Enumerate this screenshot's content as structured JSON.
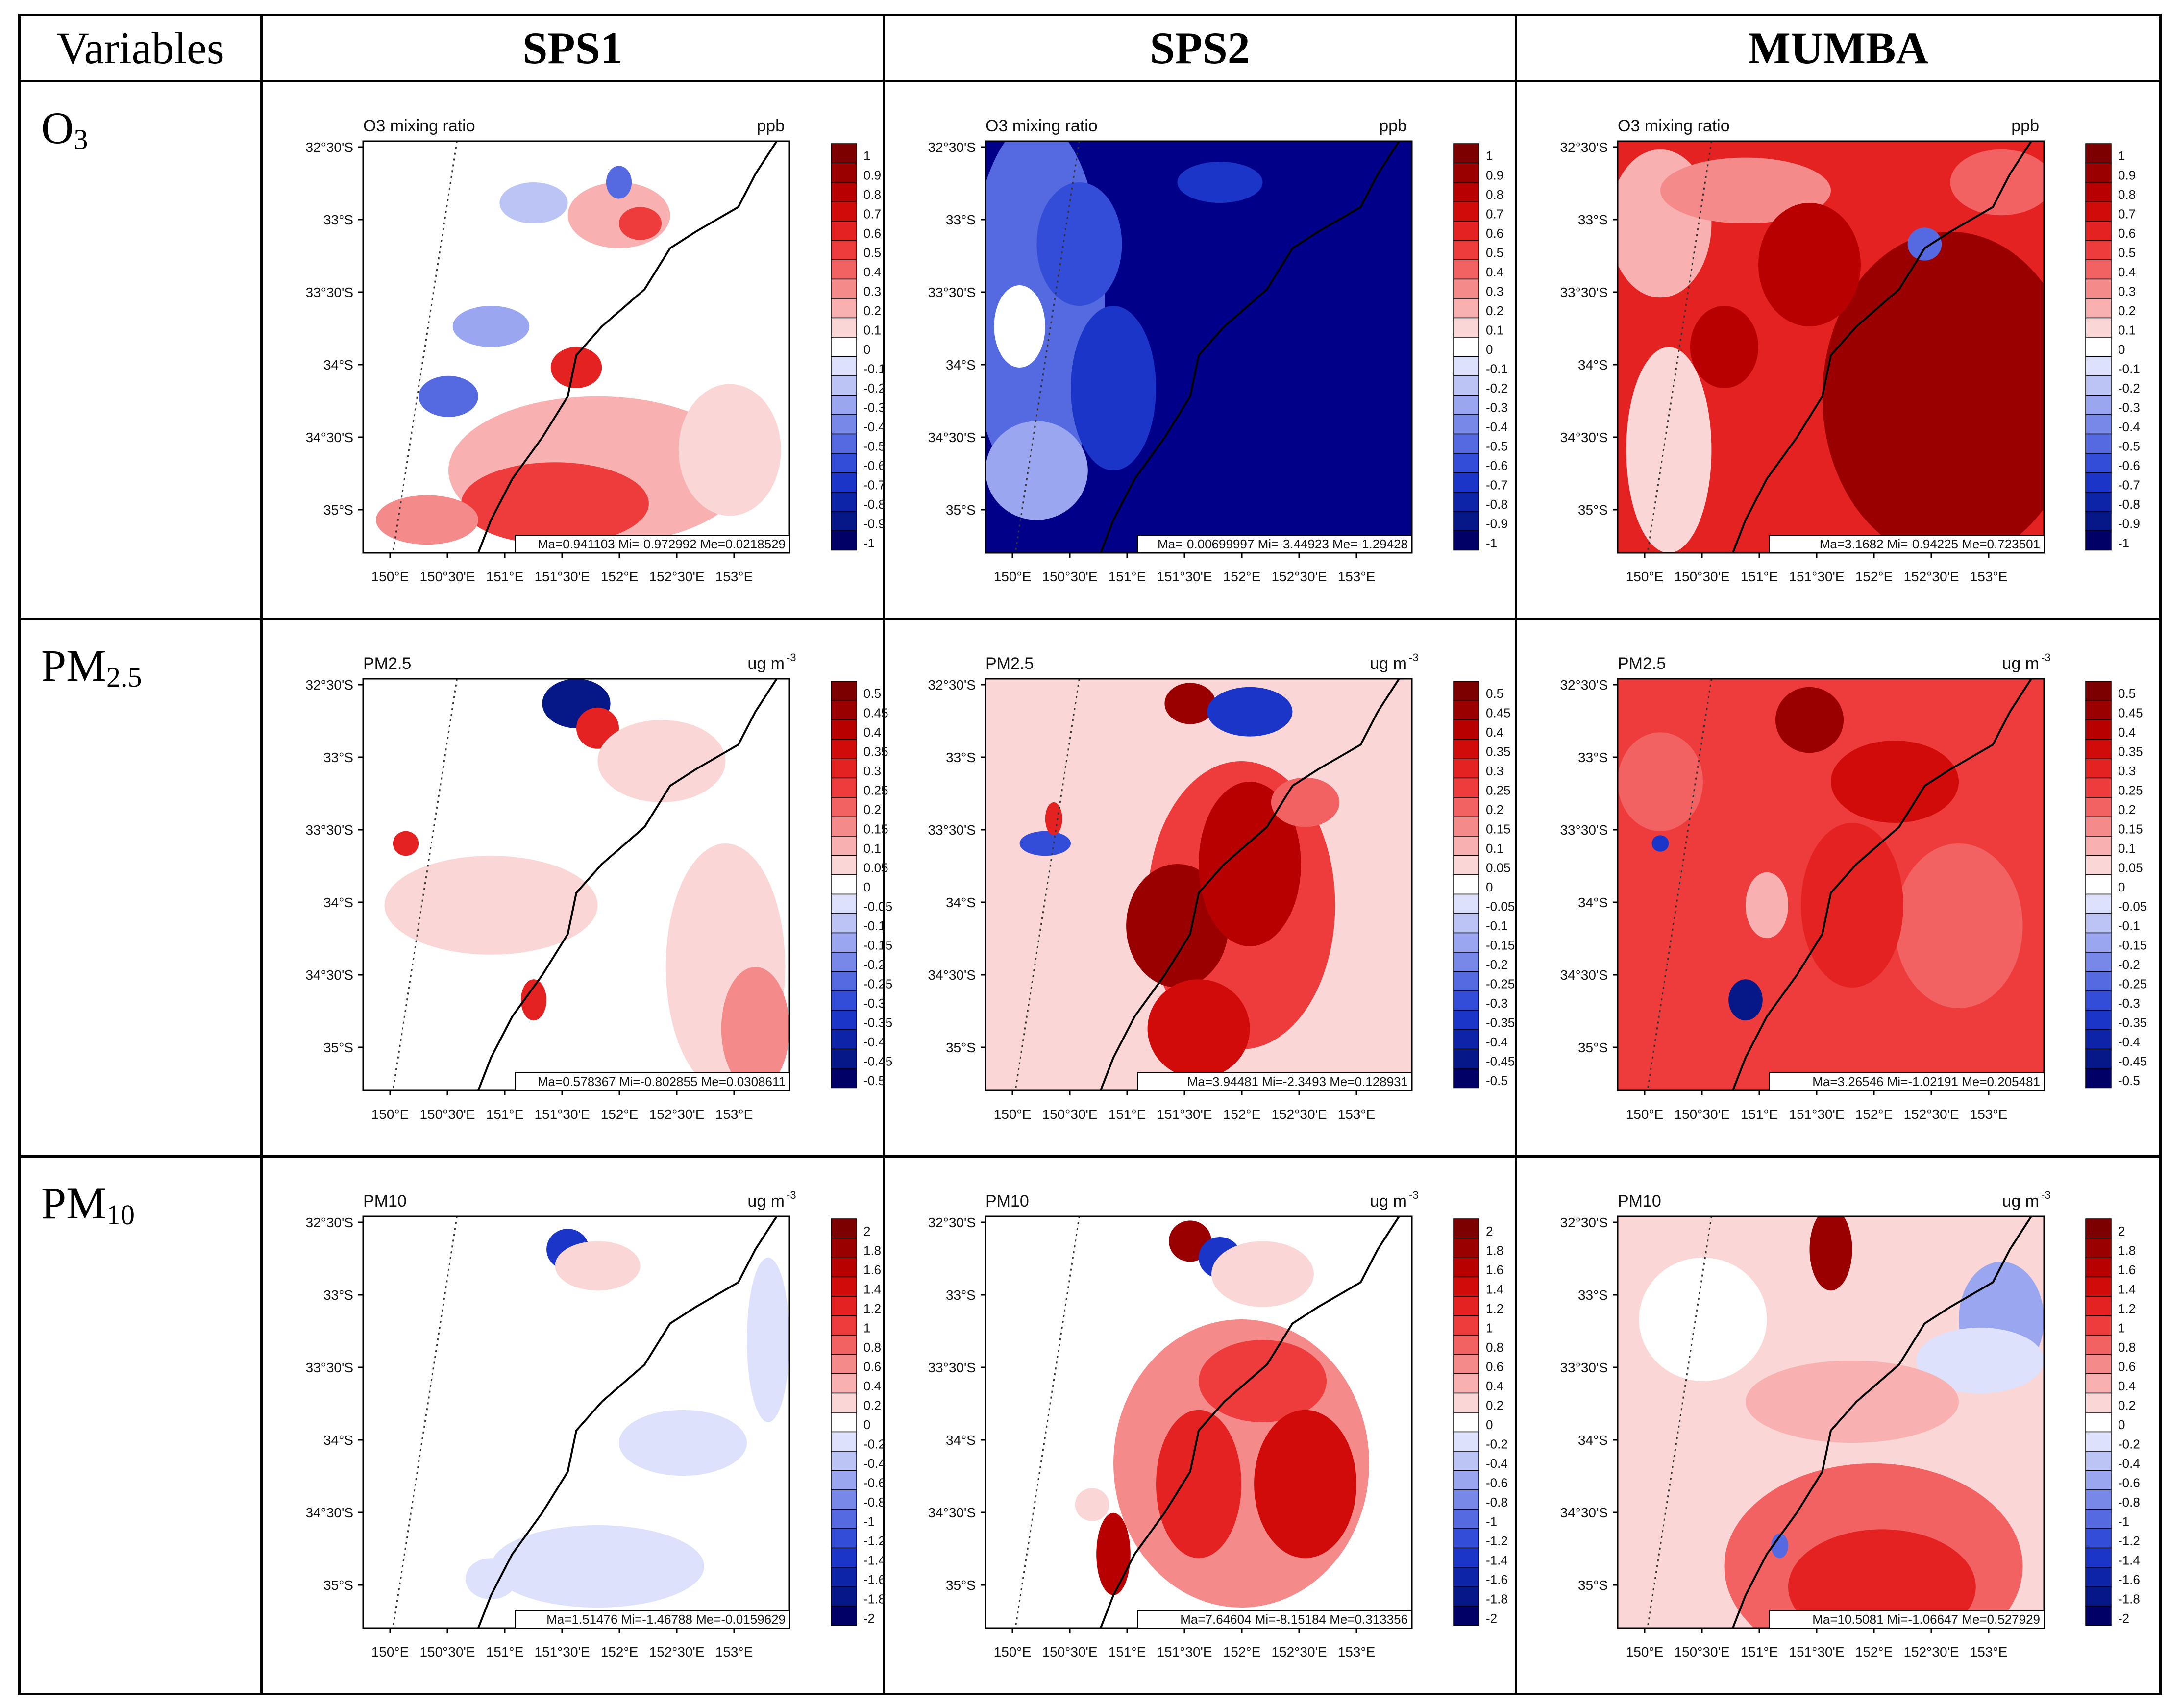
{
  "header": {
    "variables": "Variables",
    "sps1": "SPS1",
    "sps2": "SPS2",
    "mumba": "MUMBA"
  },
  "rows": [
    {
      "label": "O",
      "sub": "3"
    },
    {
      "label": "PM",
      "sub": "2.5"
    },
    {
      "label": "PM",
      "sub": "10"
    }
  ],
  "lat_ticks": [
    "32°30'S",
    "33°S",
    "33°30'S",
    "34°S",
    "34°30'S",
    "35°S"
  ],
  "lon_ticks": [
    "150°E",
    "150°30'E",
    "151°E",
    "151°30'E",
    "152°E",
    "152°30'E",
    "153°E"
  ],
  "colors": {
    "pos_max": "#8b0000",
    "pos_mid": "#e52222",
    "pos_low": "#f7c6c6",
    "neg_max": "#00008b",
    "neg_mid": "#1f3fd6",
    "neg_low": "#c9cff5",
    "zero": "#ffffff",
    "coast": "#000000"
  },
  "panels": [
    [
      {
        "title": "O3 mixing ratio",
        "unit": "ppb",
        "unitsup": "",
        "stats": "Ma=0.941103 Mi=-0.972992 Me=0.0218529",
        "cb": [
          "1",
          "0.9",
          "0.8",
          "0.7",
          "0.6",
          "0.5",
          "0.4",
          "0.3",
          "0.2",
          "0.1",
          "0",
          "-0.1",
          "-0.2",
          "-0.3",
          "-0.4",
          "-0.5",
          "-0.6",
          "-0.7",
          "-0.8",
          "-0.9",
          "-1"
        ],
        "pattern": "sps1_o3"
      },
      {
        "title": "O3 mixing ratio",
        "unit": "ppb",
        "unitsup": "",
        "stats": "Ma=-0.00699997 Mi=-3.44923 Me=-1.29428",
        "cb": [
          "1",
          "0.9",
          "0.8",
          "0.7",
          "0.6",
          "0.5",
          "0.4",
          "0.3",
          "0.2",
          "0.1",
          "0",
          "-0.1",
          "-0.2",
          "-0.3",
          "-0.4",
          "-0.5",
          "-0.6",
          "-0.7",
          "-0.8",
          "-0.9",
          "-1"
        ],
        "pattern": "sps2_o3"
      },
      {
        "title": "O3 mixing ratio",
        "unit": "ppb",
        "unitsup": "",
        "stats": "Ma=3.1682 Mi=-0.94225 Me=0.723501",
        "cb": [
          "1",
          "0.9",
          "0.8",
          "0.7",
          "0.6",
          "0.5",
          "0.4",
          "0.3",
          "0.2",
          "0.1",
          "0",
          "-0.1",
          "-0.2",
          "-0.3",
          "-0.4",
          "-0.5",
          "-0.6",
          "-0.7",
          "-0.8",
          "-0.9",
          "-1"
        ],
        "pattern": "mumba_o3"
      }
    ],
    [
      {
        "title": "PM2.5",
        "unit": "ug m",
        "unitsup": "-3",
        "stats": "Ma=0.578367 Mi=-0.802855 Me=0.0308611",
        "cb": [
          "0.5",
          "0.45",
          "0.4",
          "0.35",
          "0.3",
          "0.25",
          "0.2",
          "0.15",
          "0.1",
          "0.05",
          "0",
          "-0.05",
          "-0.1",
          "-0.15",
          "-0.2",
          "-0.25",
          "-0.3",
          "-0.35",
          "-0.4",
          "-0.45",
          "-0.5"
        ],
        "pattern": "sps1_pm25"
      },
      {
        "title": "PM2.5",
        "unit": "ug m",
        "unitsup": "-3",
        "stats": "Ma=3.94481 Mi=-2.3493 Me=0.128931",
        "cb": [
          "0.5",
          "0.45",
          "0.4",
          "0.35",
          "0.3",
          "0.25",
          "0.2",
          "0.15",
          "0.1",
          "0.05",
          "0",
          "-0.05",
          "-0.1",
          "-0.15",
          "-0.2",
          "-0.25",
          "-0.3",
          "-0.35",
          "-0.4",
          "-0.45",
          "-0.5"
        ],
        "pattern": "sps2_pm25"
      },
      {
        "title": "PM2.5",
        "unit": "ug m",
        "unitsup": "-3",
        "stats": "Ma=3.26546 Mi=-1.02191 Me=0.205481",
        "cb": [
          "0.5",
          "0.45",
          "0.4",
          "0.35",
          "0.3",
          "0.25",
          "0.2",
          "0.15",
          "0.1",
          "0.05",
          "0",
          "-0.05",
          "-0.1",
          "-0.15",
          "-0.2",
          "-0.25",
          "-0.3",
          "-0.35",
          "-0.4",
          "-0.45",
          "-0.5"
        ],
        "pattern": "mumba_pm25"
      }
    ],
    [
      {
        "title": "PM10",
        "unit": "ug m",
        "unitsup": "-3",
        "stats": "Ma=1.51476 Mi=-1.46788 Me=-0.0159629",
        "cb": [
          "2",
          "1.8",
          "1.6",
          "1.4",
          "1.2",
          "1",
          "0.8",
          "0.6",
          "0.4",
          "0.2",
          "0",
          "-0.2",
          "-0.4",
          "-0.6",
          "-0.8",
          "-1",
          "-1.2",
          "-1.4",
          "-1.6",
          "-1.8",
          "-2"
        ],
        "pattern": "sps1_pm10"
      },
      {
        "title": "PM10",
        "unit": "ug m",
        "unitsup": "-3",
        "stats": "Ma=7.64604 Mi=-8.15184 Me=0.313356",
        "cb": [
          "2",
          "1.8",
          "1.6",
          "1.4",
          "1.2",
          "1",
          "0.8",
          "0.6",
          "0.4",
          "0.2",
          "0",
          "-0.2",
          "-0.4",
          "-0.6",
          "-0.8",
          "-1",
          "-1.2",
          "-1.4",
          "-1.6",
          "-1.8",
          "-2"
        ],
        "pattern": "sps2_pm10"
      },
      {
        "title": "PM10",
        "unit": "ug m",
        "unitsup": "-3",
        "stats": "Ma=10.5081 Mi=-1.06647 Me=0.527929",
        "cb": [
          "2",
          "1.8",
          "1.6",
          "1.4",
          "1.2",
          "1",
          "0.8",
          "0.6",
          "0.4",
          "0.2",
          "0",
          "-0.2",
          "-0.4",
          "-0.6",
          "-0.8",
          "-1",
          "-1.2",
          "-1.4",
          "-1.6",
          "-1.8",
          "-2"
        ],
        "pattern": "mumba_pm10"
      }
    ]
  ]
}
